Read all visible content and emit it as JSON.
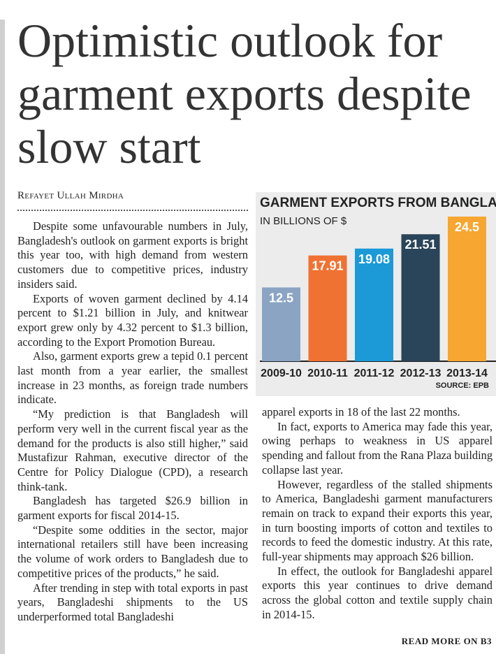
{
  "headline": "Optimistic outlook for garment exports despite slow start",
  "byline": "Refayet Ullah Mirdha",
  "body": {
    "column1": [
      "Despite some unfavourable numbers in July, Bangladesh's outlook on garment exports is bright this year too, with high demand from western customers due to competitive prices, industry insiders said.",
      "Exports of woven garment declined by 4.14 percent to $1.21 billion in July, and knitwear export grew only by 4.32 percent to $1.3 billion, according to the Export Promotion Bureau.",
      "Also, garment exports grew a tepid 0.1 percent last month from a year earlier, the smallest increase in 23 months, as foreign trade numbers indicate.",
      "“My prediction is that Bangladesh will perform very well in the current fiscal year as the demand for the products is also still higher,” said Mustafizur Rahman, executive director of the Centre for Policy Dialogue (CPD), a research think-tank.",
      "Bangladesh has targeted $26.9 billion in garment exports for fiscal 2014-15.",
      "“Despite some oddities in the sector, major international retailers still have been increasing the volume of work orders to Bangladesh due to competitive prices of the products,” he said.",
      "After trending in step with total exports in past years, Bangladeshi shipments to the US underperformed total Bangladeshi"
    ],
    "column2": [
      "apparel exports in 18 of the last 22 months.",
      "In fact, exports to America may fade this year, owing perhaps to weakness in US apparel spending and fallout from the Rana Plaza building collapse last year.",
      "However, regardless of the stalled shipments to America, Bangladeshi garment manufacturers remain on track to expand their exports this year, in turn boosting imports of cotton and textiles to records to feed the domestic industry. At this rate, full-year shipments may approach $26 billion.",
      "In effect, the outlook for Bangladeshi apparel exports this year continues to drive demand across the global cotton and textile supply chain in 2014-15."
    ],
    "read_more": "READ MORE ON B3"
  },
  "chart_data": {
    "type": "bar",
    "title": "GARMENT EXPORTS FROM BANGLADESH",
    "subtitle": "IN BILLIONS OF $",
    "categories": [
      "2009-10",
      "2010-11",
      "2011-12",
      "2012-13",
      "2013-14"
    ],
    "values": [
      12.5,
      17.91,
      19.08,
      21.51,
      24.5
    ],
    "colors": [
      "#8ba4c4",
      "#f07232",
      "#1b9ad7",
      "#2a4459",
      "#f7a632"
    ],
    "source": "SOURCE: EPB"
  }
}
